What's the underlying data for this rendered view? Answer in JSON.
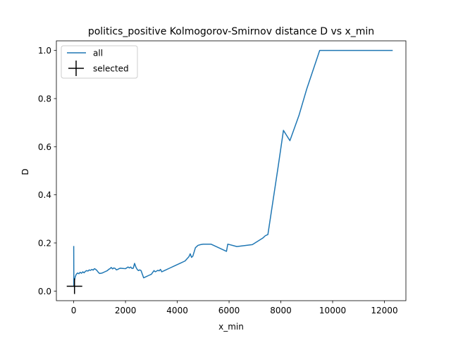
{
  "chart_data": {
    "type": "line",
    "title": "politics_positive Kolmogorov-Smirnov distance D vs x_min",
    "xlabel": "x_min",
    "ylabel": "D",
    "xlim": [
      -670,
      12830
    ],
    "ylim": [
      -0.04,
      1.04
    ],
    "xticks": [
      0,
      2000,
      4000,
      6000,
      8000,
      10000,
      12000
    ],
    "xtick_labels": [
      "0",
      "2000",
      "4000",
      "6000",
      "8000",
      "10000",
      "12000"
    ],
    "yticks": [
      0.0,
      0.2,
      0.4,
      0.6,
      0.8,
      1.0
    ],
    "ytick_labels": [
      "0.0",
      "0.2",
      "0.4",
      "0.6",
      "0.8",
      "1.0"
    ],
    "grid": false,
    "legend_position": "top-left",
    "series": [
      {
        "name": "all",
        "color": "#1f77b4",
        "x": [
          0,
          5,
          10,
          20,
          40,
          60,
          80,
          100,
          150,
          200,
          250,
          300,
          350,
          400,
          450,
          500,
          550,
          600,
          650,
          700,
          750,
          800,
          850,
          900,
          950,
          1000,
          1100,
          1200,
          1300,
          1350,
          1400,
          1450,
          1500,
          1550,
          1600,
          1650,
          1700,
          1750,
          1800,
          1900,
          2000,
          2100,
          2150,
          2200,
          2250,
          2300,
          2350,
          2400,
          2450,
          2500,
          2550,
          2600,
          2700,
          2800,
          2900,
          3000,
          3100,
          3150,
          3200,
          3250,
          3300,
          3350,
          3400,
          3500,
          3700,
          3900,
          4100,
          4300,
          4450,
          4500,
          4550,
          4600,
          4700,
          4800,
          4900,
          5000,
          5200,
          5300,
          5900,
          5950,
          6300,
          6900,
          7300,
          7400,
          7500,
          7900,
          8100,
          8350,
          8700,
          9000,
          9500,
          10000,
          12300
        ],
        "y": [
          0.185,
          0.02,
          0.03,
          0.04,
          0.05,
          0.06,
          0.065,
          0.07,
          0.075,
          0.072,
          0.078,
          0.074,
          0.08,
          0.076,
          0.082,
          0.085,
          0.083,
          0.088,
          0.086,
          0.09,
          0.087,
          0.093,
          0.09,
          0.085,
          0.078,
          0.073,
          0.075,
          0.08,
          0.085,
          0.09,
          0.093,
          0.098,
          0.092,
          0.096,
          0.094,
          0.088,
          0.09,
          0.093,
          0.095,
          0.094,
          0.093,
          0.1,
          0.096,
          0.1,
          0.094,
          0.095,
          0.115,
          0.1,
          0.09,
          0.085,
          0.088,
          0.085,
          0.055,
          0.06,
          0.065,
          0.07,
          0.085,
          0.08,
          0.083,
          0.086,
          0.084,
          0.09,
          0.08,
          0.085,
          0.095,
          0.105,
          0.115,
          0.125,
          0.143,
          0.155,
          0.14,
          0.145,
          0.18,
          0.19,
          0.193,
          0.195,
          0.195,
          0.195,
          0.165,
          0.195,
          0.185,
          0.193,
          0.22,
          0.23,
          0.235,
          0.52,
          0.668,
          0.625,
          0.73,
          0.84,
          1.0,
          1.0,
          1.0
        ]
      },
      {
        "name": "selected",
        "color": "#000000",
        "marker": "+",
        "x": [
          30
        ],
        "y": [
          0.02
        ]
      }
    ]
  }
}
